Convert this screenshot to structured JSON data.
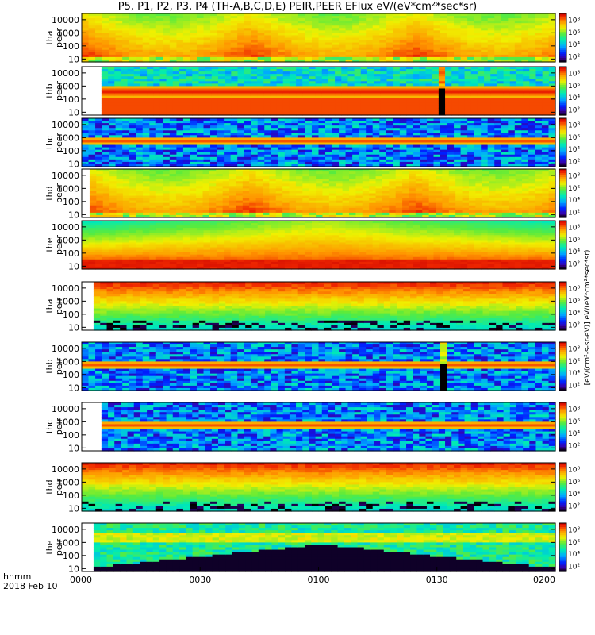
{
  "title": "P5, P1, P2, P3, P4 (TH-A,B,C,D,E) PEIR,PEER EFlux eV/(eV*cm²*sec*sr)",
  "footer": {
    "time_label": "hhmm",
    "date_label": "2018 Feb 10"
  },
  "colors": {
    "frame": "#000000",
    "background": "#ffffff"
  },
  "chart_data": {
    "type": "heatmap",
    "x": {
      "ticks": [
        "0000",
        "0030",
        "0100",
        "0130",
        "0200"
      ],
      "range": [
        "00:00",
        "02:00"
      ]
    },
    "y_axis": {
      "scale": "log",
      "ticks": [
        "10",
        "100",
        "1000",
        "10000"
      ],
      "units": "eV"
    },
    "colorbar": {
      "scale": "log",
      "ticks": [
        "10²",
        "10⁴",
        "10⁶",
        "10⁸"
      ],
      "label": "eV/(eV*cm²*sec*sr)",
      "bottom_label": "[eV/(cm²-s-sr-eV)]"
    },
    "panels": [
      {
        "probe": "tha",
        "species": "peer",
        "data_start": "00:00",
        "pattern": "warm-dense"
      },
      {
        "probe": "thb",
        "species": "peer",
        "data_start": "00:05",
        "gap": [
          "01:30",
          "01:31"
        ],
        "pattern": "band"
      },
      {
        "probe": "thc",
        "species": "peer",
        "data_start": "00:00",
        "pattern": "noise-band"
      },
      {
        "probe": "thd",
        "species": "peer",
        "data_start": "00:02",
        "pattern": "warm-dense"
      },
      {
        "probe": "the",
        "species": "peer",
        "data_start": "00:00",
        "pattern": "warm-dome"
      },
      {
        "probe": "tha",
        "species": "peir",
        "data_start": "00:03",
        "pattern": "hot-top"
      },
      {
        "probe": "thb",
        "species": "peir",
        "data_start": "00:00",
        "gap": [
          "01:30",
          "01:32"
        ],
        "pattern": "noise-band"
      },
      {
        "probe": "thc",
        "species": "peir",
        "data_start": "00:05",
        "pattern": "noise-band"
      },
      {
        "probe": "thd",
        "species": "peir",
        "data_start": "00:00",
        "pattern": "hot-top"
      },
      {
        "probe": "the",
        "species": "peir",
        "data_start": "00:03",
        "pattern": "green-dome"
      }
    ]
  }
}
